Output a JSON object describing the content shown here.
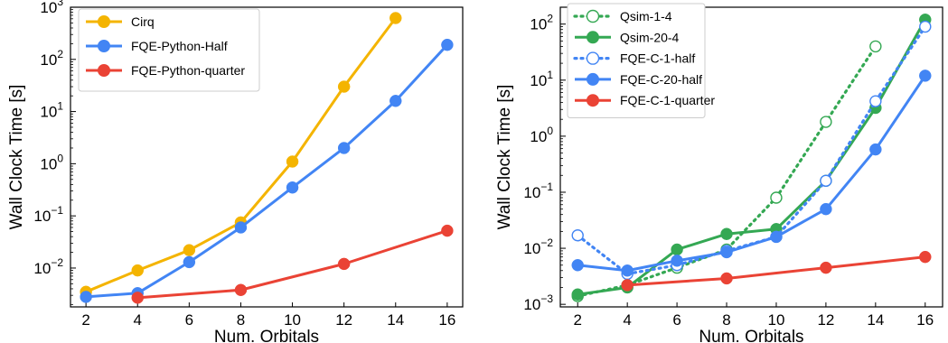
{
  "chart_data": [
    {
      "type": "line",
      "title": "",
      "xlabel": "Num. Orbitals",
      "ylabel": "Wall Clock Time [s]",
      "yscale": "log",
      "xlim": [
        1.4,
        16.6
      ],
      "ylim": [
        0.0018,
        1000
      ],
      "xticks": [
        2,
        4,
        6,
        8,
        10,
        12,
        14,
        16
      ],
      "yticks": [
        0.01,
        0.1,
        1,
        10,
        100,
        1000
      ],
      "ytick_labels": [
        {
          "base": "10",
          "exp": "−2"
        },
        {
          "base": "10",
          "exp": "−1"
        },
        {
          "base": "10",
          "exp": "0"
        },
        {
          "base": "10",
          "exp": "1"
        },
        {
          "base": "10",
          "exp": "2"
        },
        {
          "base": "10",
          "exp": "3"
        }
      ],
      "grid": false,
      "legend_position": "top-left",
      "series": [
        {
          "name": "Cirq",
          "color": "#f4b400",
          "style": "solid",
          "marker": "filled",
          "x": [
            2,
            4,
            6,
            8,
            10,
            12,
            14
          ],
          "y": [
            0.0035,
            0.009,
            0.022,
            0.075,
            1.1,
            30,
            620
          ]
        },
        {
          "name": "FQE-Python-Half",
          "color": "#4285f4",
          "style": "solid",
          "marker": "filled",
          "x": [
            2,
            4,
            6,
            8,
            10,
            12,
            14,
            16
          ],
          "y": [
            0.0028,
            0.0033,
            0.013,
            0.06,
            0.35,
            2.0,
            16,
            190
          ]
        },
        {
          "name": "FQE-Python-quarter",
          "color": "#ea4335",
          "style": "solid",
          "marker": "filled",
          "x": [
            4,
            8,
            12,
            16
          ],
          "y": [
            0.0027,
            0.0038,
            0.012,
            0.052
          ]
        }
      ]
    },
    {
      "type": "line",
      "title": "",
      "xlabel": "Num. Orbitals",
      "ylabel": "Wall Clock Time [s]",
      "yscale": "log",
      "xlim": [
        1.3,
        16.7
      ],
      "ylim": [
        0.0009,
        200
      ],
      "xticks": [
        2,
        4,
        6,
        8,
        10,
        12,
        14,
        16
      ],
      "yticks": [
        0.001,
        0.01,
        0.1,
        1,
        10,
        100
      ],
      "ytick_labels": [
        {
          "base": "10",
          "exp": "−3"
        },
        {
          "base": "10",
          "exp": "−2"
        },
        {
          "base": "10",
          "exp": "−1"
        },
        {
          "base": "10",
          "exp": "0"
        },
        {
          "base": "10",
          "exp": "1"
        },
        {
          "base": "10",
          "exp": "2"
        }
      ],
      "grid": false,
      "legend_position": "top-left",
      "series": [
        {
          "name": "Qsim-1-4",
          "color": "#34a853",
          "style": "dotted",
          "marker": "open",
          "x": [
            2,
            4,
            6,
            8,
            10,
            12,
            14
          ],
          "y": [
            0.0014,
            0.0022,
            0.0045,
            0.0095,
            0.08,
            1.8,
            40
          ]
        },
        {
          "name": "Qsim-20-4",
          "color": "#34a853",
          "style": "solid",
          "marker": "filled",
          "x": [
            2,
            4,
            6,
            8,
            10,
            12,
            14,
            16
          ],
          "y": [
            0.0015,
            0.002,
            0.0095,
            0.018,
            0.022,
            0.16,
            3.2,
            120
          ]
        },
        {
          "name": "FQE-C-1-half",
          "color": "#4285f4",
          "style": "dotted",
          "marker": "open",
          "x": [
            2,
            4,
            6,
            8,
            10,
            12,
            14,
            16
          ],
          "y": [
            0.017,
            0.0035,
            0.005,
            0.009,
            0.016,
            0.16,
            4.2,
            90
          ]
        },
        {
          "name": "FQE-C-20-half",
          "color": "#4285f4",
          "style": "solid",
          "marker": "filled",
          "x": [
            2,
            4,
            6,
            8,
            10,
            12,
            14,
            16
          ],
          "y": [
            0.005,
            0.004,
            0.006,
            0.0085,
            0.016,
            0.05,
            0.58,
            12
          ]
        },
        {
          "name": "FQE-C-1-quarter",
          "color": "#ea4335",
          "style": "solid",
          "marker": "filled",
          "x": [
            4,
            8,
            12,
            16
          ],
          "y": [
            0.0022,
            0.0029,
            0.0045,
            0.007
          ]
        }
      ]
    }
  ]
}
